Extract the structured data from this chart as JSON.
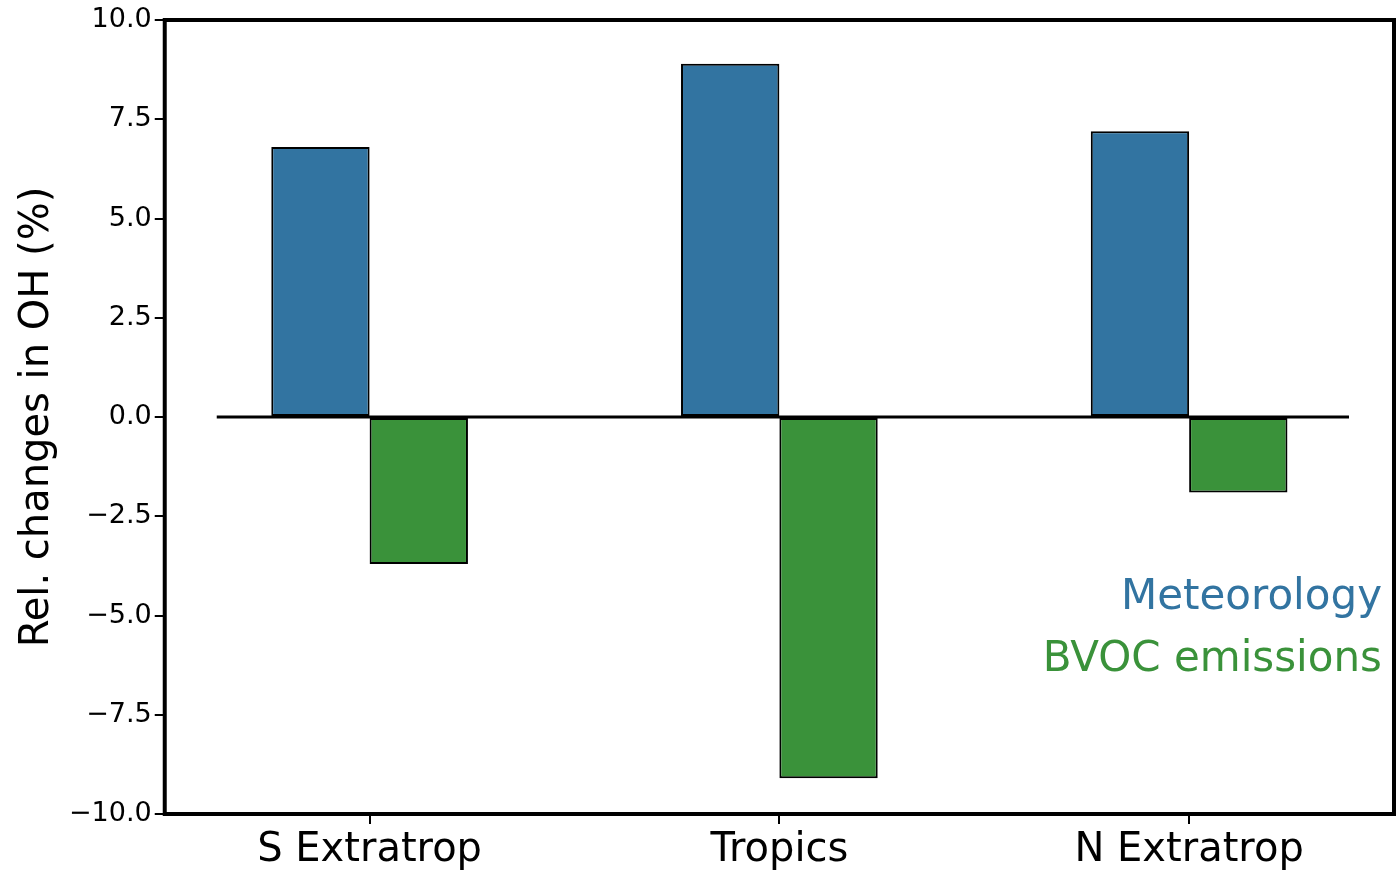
{
  "chart_data": {
    "type": "bar",
    "ylabel": "Rel. changes in OH (%)",
    "categories": [
      "S Extratrop",
      "Tropics",
      "N Extratrop"
    ],
    "series": [
      {
        "name": "Meteorology",
        "color": "#3274a1",
        "values": [
          6.8,
          8.9,
          7.2
        ]
      },
      {
        "name": "BVOC emissions",
        "color": "#3a923a",
        "values": [
          -3.7,
          -9.1,
          -1.9
        ]
      }
    ],
    "ylim": [
      -10,
      10
    ],
    "yticks": [
      {
        "value": -10,
        "label": "−10.0"
      },
      {
        "value": -7.5,
        "label": "−7.5"
      },
      {
        "value": -5,
        "label": "−5.0"
      },
      {
        "value": -2.5,
        "label": "−2.5"
      },
      {
        "value": 0,
        "label": "0.0"
      },
      {
        "value": 2.5,
        "label": "2.5"
      },
      {
        "value": 5,
        "label": "5.0"
      },
      {
        "value": 7.5,
        "label": "7.5"
      },
      {
        "value": 10,
        "label": "10.0"
      }
    ],
    "ref_lines": [
      {
        "axis": "y",
        "value": 0,
        "color": "#000000"
      }
    ],
    "grid": false,
    "legend": "bottom right"
  }
}
